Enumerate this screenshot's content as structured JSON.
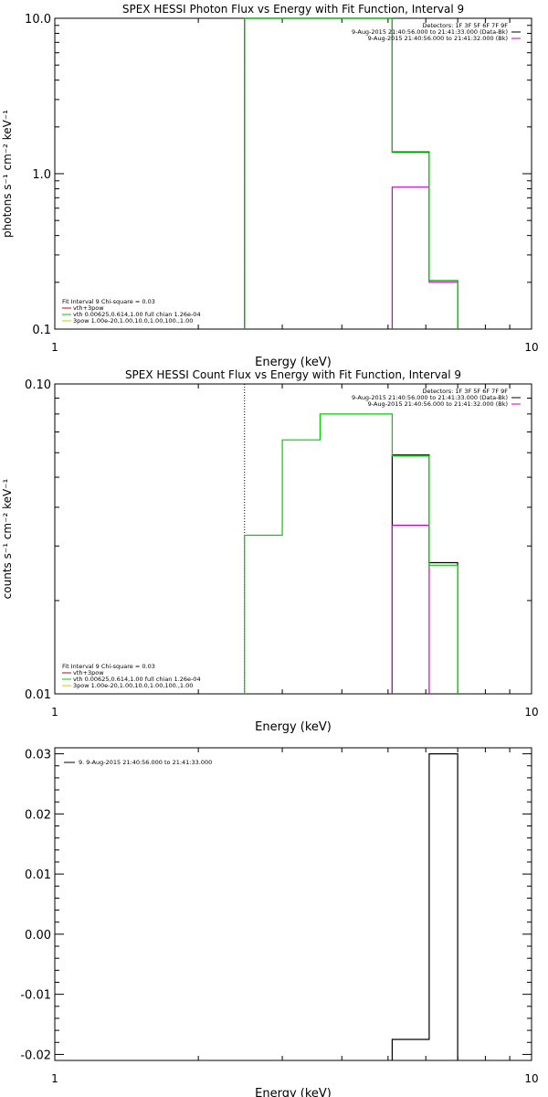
{
  "chart_data": [
    {
      "type": "line",
      "title": "SPEX HESSI Photon Flux vs Energy with Fit Function, Interval 9",
      "xlabel": "Energy (keV)",
      "ylabel": "photons s⁻¹ cm⁻² keV⁻¹",
      "xscale": "log",
      "yscale": "log",
      "xlim": [
        1,
        10
      ],
      "ylim": [
        0.1,
        10
      ],
      "xticks": [
        "1",
        "10"
      ],
      "yticks": [
        "0.1",
        "1.0",
        "10.0"
      ],
      "legend": [
        "Detectors: 1F 3F 5F 6F 7F 9F",
        "9-Aug-2015 21:40:56.000 to 21:41:33.000 (Data-Bk)",
        "9-Aug-2015 21:40:56.000 to 21:41:32.000 (Bk)"
      ],
      "fit_text": [
        "Fit Interval 9   Chi-square = 0.03",
        "vth+3pow",
        "vth 0.00625,0.614,1.00  full chian 1.26e-04",
        "3pow 1.00e-20,1.00,10.0,1.00,100.,1.00"
      ],
      "series": [
        {
          "color": "#000000",
          "steps": [
            [
              2.5,
              3,
              10
            ],
            [
              3,
              3.6,
              10
            ],
            [
              3.6,
              4.3,
              10
            ],
            [
              4.3,
              5.1,
              10
            ],
            [
              5.1,
              6.1,
              1.38
            ],
            [
              6.1,
              7.0,
              0.205
            ]
          ]
        },
        {
          "color": "#cc00cc",
          "steps": [
            [
              5.1,
              6.1,
              0.82
            ],
            [
              6.1,
              7.0,
              0.2
            ]
          ]
        },
        {
          "color": "#00cc00",
          "steps": [
            [
              2.5,
              3,
              10
            ],
            [
              3,
              3.6,
              10
            ],
            [
              3.6,
              4.3,
              10
            ],
            [
              4.3,
              5.1,
              10
            ],
            [
              5.1,
              6.1,
              1.37
            ],
            [
              6.1,
              7.0,
              0.205
            ]
          ]
        }
      ],
      "dotted_x": 2.5
    },
    {
      "type": "line",
      "title": "SPEX HESSI Count Flux vs Energy with Fit Function, Interval 9",
      "xlabel": "Energy (keV)",
      "ylabel": "counts s⁻¹ cm⁻² keV⁻¹",
      "xscale": "log",
      "yscale": "log",
      "xlim": [
        1,
        10
      ],
      "ylim": [
        0.01,
        0.1
      ],
      "xticks": [
        "1",
        "10"
      ],
      "yticks": [
        "0.01",
        "0.10"
      ],
      "legend": [
        "Detectors: 1F 3F 5F 6F 7F 9F",
        "9-Aug-2015 21:40:56.000 to 21:41:33.000 (Data-Bk)",
        "9-Aug-2015 21:40:56.000 to 21:41:32.000 (Bk)"
      ],
      "fit_text": [
        "Fit Interval 9   Chi-square = 0.03",
        "vth+3pow",
        "vth 0.00625,0.614,1.00  full chian 1.26e-04",
        "3pow 1.00e-20,1.00,10.0,1.00,100.,1.00"
      ],
      "series": [
        {
          "color": "#000000",
          "steps": [
            [
              5.1,
              6.1,
              0.059
            ],
            [
              6.1,
              7.0,
              0.0265
            ]
          ]
        },
        {
          "color": "#cc00cc",
          "steps": [
            [
              5.1,
              6.1,
              0.035
            ]
          ]
        },
        {
          "color": "#00cc00",
          "steps": [
            [
              2.5,
              3.0,
              0.0325
            ],
            [
              3.0,
              3.6,
              0.066
            ],
            [
              3.6,
              4.3,
              0.08
            ],
            [
              4.3,
              5.1,
              0.08
            ],
            [
              5.1,
              6.1,
              0.0585
            ],
            [
              6.1,
              7.0,
              0.026
            ]
          ]
        }
      ],
      "dotted_x": 2.5
    },
    {
      "type": "line",
      "title": "",
      "xlabel": "Energy (keV)",
      "ylabel": "",
      "xscale": "log",
      "yscale": "linear",
      "xlim": [
        1,
        10
      ],
      "ylim": [
        -0.021,
        0.031
      ],
      "xticks": [
        "1",
        "10"
      ],
      "yticks": [
        "-0.02",
        "-0.01",
        "0.00",
        "0.01",
        "0.02",
        "0.03"
      ],
      "yticks_values": [
        -0.02,
        -0.01,
        0.0,
        0.01,
        0.02,
        0.03
      ],
      "legend": [
        "9. 9-Aug-2015 21:40:56.000 to 21:41:33.000"
      ],
      "series": [
        {
          "color": "#000000",
          "steps": [
            [
              5.1,
              6.1,
              -0.0175
            ],
            [
              6.1,
              7.0,
              0.03
            ]
          ]
        }
      ]
    }
  ]
}
